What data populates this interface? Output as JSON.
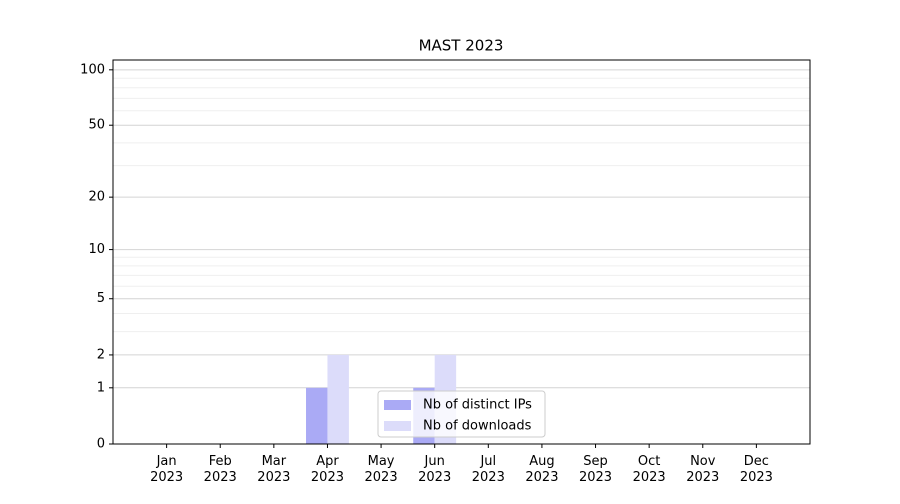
{
  "chart_data": {
    "type": "bar",
    "title": "MAST 2023",
    "categories": [
      "Jan 2023",
      "Feb 2023",
      "Mar 2023",
      "Apr 2023",
      "May 2023",
      "Jun 2023",
      "Jul 2023",
      "Aug 2023",
      "Sep 2023",
      "Oct 2023",
      "Nov 2023",
      "Dec 2023"
    ],
    "series": [
      {
        "name": "Nb of distinct IPs",
        "color": "#aaaaf5",
        "values": [
          0,
          0,
          0,
          1,
          0,
          1,
          0,
          0,
          0,
          0,
          0,
          0
        ]
      },
      {
        "name": "Nb of downloads",
        "color": "#dcdcfa",
        "values": [
          0,
          0,
          0,
          2,
          0,
          2,
          0,
          0,
          0,
          0,
          0,
          0
        ]
      }
    ],
    "yscale": "log1p",
    "ylim": [
      0,
      113
    ],
    "yticks": [
      0,
      1,
      2,
      5,
      10,
      20,
      50,
      100
    ],
    "yminorticks": [
      3,
      4,
      6,
      7,
      8,
      9,
      30,
      40,
      60,
      70,
      80,
      90
    ],
    "grid": true,
    "legend": "lower center"
  }
}
